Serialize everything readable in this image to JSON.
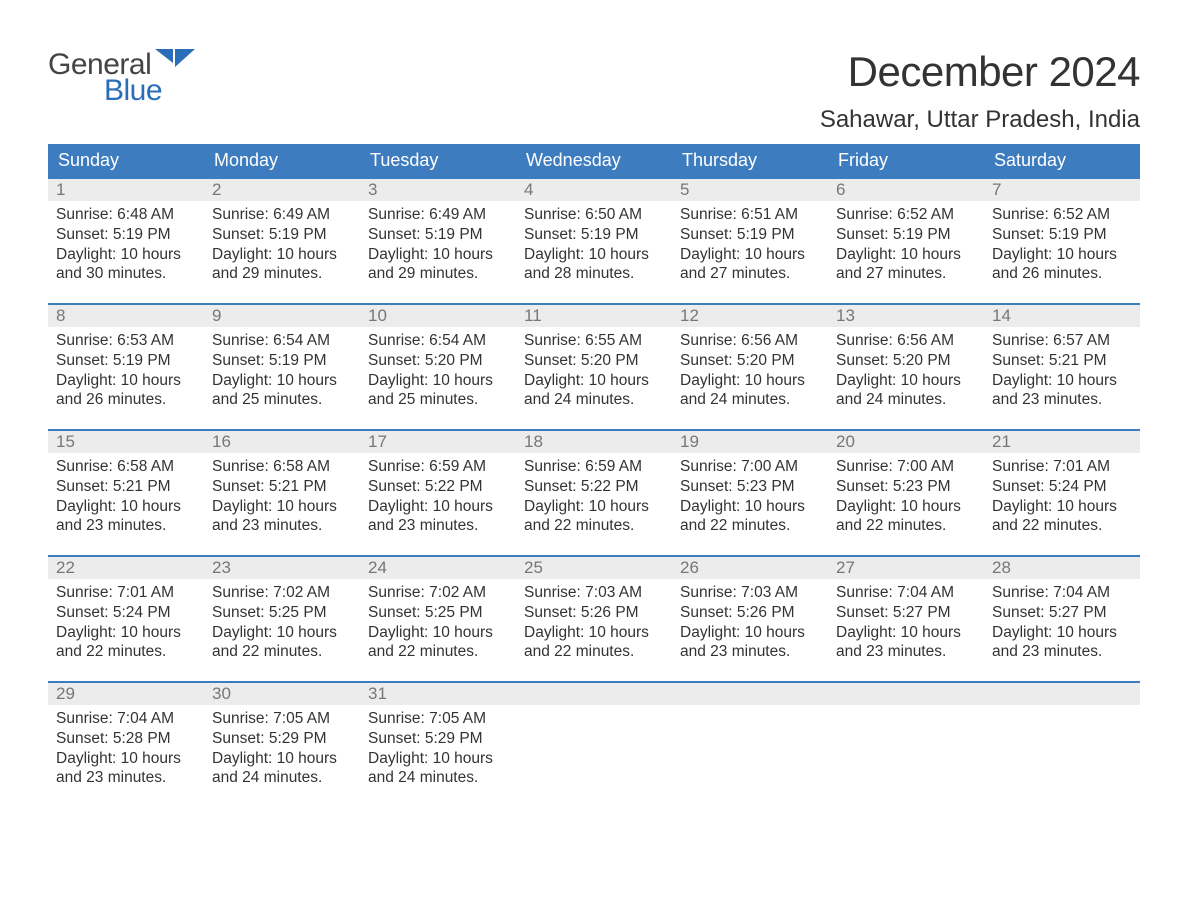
{
  "logo": {
    "line1": "General",
    "line2": "Blue"
  },
  "title": "December 2024",
  "location": "Sahawar, Uttar Pradesh, India",
  "colors": {
    "header_bg": "#3d7cbf",
    "header_text": "#ffffff",
    "daynum_bg": "#ececec",
    "daynum_text": "#777777",
    "body_text": "#333333",
    "week_border": "#3d7cbf",
    "logo_blue": "#2a6db8",
    "logo_gray": "#444444"
  },
  "weekdays": [
    "Sunday",
    "Monday",
    "Tuesday",
    "Wednesday",
    "Thursday",
    "Friday",
    "Saturday"
  ],
  "labels": {
    "sunrise": "Sunrise:",
    "sunset": "Sunset:",
    "daylight": "Daylight:"
  },
  "days": [
    {
      "n": "1",
      "sr": "6:48 AM",
      "ss": "5:19 PM",
      "dl": "10 hours and 30 minutes."
    },
    {
      "n": "2",
      "sr": "6:49 AM",
      "ss": "5:19 PM",
      "dl": "10 hours and 29 minutes."
    },
    {
      "n": "3",
      "sr": "6:49 AM",
      "ss": "5:19 PM",
      "dl": "10 hours and 29 minutes."
    },
    {
      "n": "4",
      "sr": "6:50 AM",
      "ss": "5:19 PM",
      "dl": "10 hours and 28 minutes."
    },
    {
      "n": "5",
      "sr": "6:51 AM",
      "ss": "5:19 PM",
      "dl": "10 hours and 27 minutes."
    },
    {
      "n": "6",
      "sr": "6:52 AM",
      "ss": "5:19 PM",
      "dl": "10 hours and 27 minutes."
    },
    {
      "n": "7",
      "sr": "6:52 AM",
      "ss": "5:19 PM",
      "dl": "10 hours and 26 minutes."
    },
    {
      "n": "8",
      "sr": "6:53 AM",
      "ss": "5:19 PM",
      "dl": "10 hours and 26 minutes."
    },
    {
      "n": "9",
      "sr": "6:54 AM",
      "ss": "5:19 PM",
      "dl": "10 hours and 25 minutes."
    },
    {
      "n": "10",
      "sr": "6:54 AM",
      "ss": "5:20 PM",
      "dl": "10 hours and 25 minutes."
    },
    {
      "n": "11",
      "sr": "6:55 AM",
      "ss": "5:20 PM",
      "dl": "10 hours and 24 minutes."
    },
    {
      "n": "12",
      "sr": "6:56 AM",
      "ss": "5:20 PM",
      "dl": "10 hours and 24 minutes."
    },
    {
      "n": "13",
      "sr": "6:56 AM",
      "ss": "5:20 PM",
      "dl": "10 hours and 24 minutes."
    },
    {
      "n": "14",
      "sr": "6:57 AM",
      "ss": "5:21 PM",
      "dl": "10 hours and 23 minutes."
    },
    {
      "n": "15",
      "sr": "6:58 AM",
      "ss": "5:21 PM",
      "dl": "10 hours and 23 minutes."
    },
    {
      "n": "16",
      "sr": "6:58 AM",
      "ss": "5:21 PM",
      "dl": "10 hours and 23 minutes."
    },
    {
      "n": "17",
      "sr": "6:59 AM",
      "ss": "5:22 PM",
      "dl": "10 hours and 23 minutes."
    },
    {
      "n": "18",
      "sr": "6:59 AM",
      "ss": "5:22 PM",
      "dl": "10 hours and 22 minutes."
    },
    {
      "n": "19",
      "sr": "7:00 AM",
      "ss": "5:23 PM",
      "dl": "10 hours and 22 minutes."
    },
    {
      "n": "20",
      "sr": "7:00 AM",
      "ss": "5:23 PM",
      "dl": "10 hours and 22 minutes."
    },
    {
      "n": "21",
      "sr": "7:01 AM",
      "ss": "5:24 PM",
      "dl": "10 hours and 22 minutes."
    },
    {
      "n": "22",
      "sr": "7:01 AM",
      "ss": "5:24 PM",
      "dl": "10 hours and 22 minutes."
    },
    {
      "n": "23",
      "sr": "7:02 AM",
      "ss": "5:25 PM",
      "dl": "10 hours and 22 minutes."
    },
    {
      "n": "24",
      "sr": "7:02 AM",
      "ss": "5:25 PM",
      "dl": "10 hours and 22 minutes."
    },
    {
      "n": "25",
      "sr": "7:03 AM",
      "ss": "5:26 PM",
      "dl": "10 hours and 22 minutes."
    },
    {
      "n": "26",
      "sr": "7:03 AM",
      "ss": "5:26 PM",
      "dl": "10 hours and 23 minutes."
    },
    {
      "n": "27",
      "sr": "7:04 AM",
      "ss": "5:27 PM",
      "dl": "10 hours and 23 minutes."
    },
    {
      "n": "28",
      "sr": "7:04 AM",
      "ss": "5:27 PM",
      "dl": "10 hours and 23 minutes."
    },
    {
      "n": "29",
      "sr": "7:04 AM",
      "ss": "5:28 PM",
      "dl": "10 hours and 23 minutes."
    },
    {
      "n": "30",
      "sr": "7:05 AM",
      "ss": "5:29 PM",
      "dl": "10 hours and 24 minutes."
    },
    {
      "n": "31",
      "sr": "7:05 AM",
      "ss": "5:29 PM",
      "dl": "10 hours and 24 minutes."
    }
  ],
  "weeks_layout": [
    [
      0,
      1,
      2,
      3,
      4,
      5,
      6
    ],
    [
      7,
      8,
      9,
      10,
      11,
      12,
      13
    ],
    [
      14,
      15,
      16,
      17,
      18,
      19,
      20
    ],
    [
      21,
      22,
      23,
      24,
      25,
      26,
      27
    ],
    [
      28,
      29,
      30,
      -1,
      -1,
      -1,
      -1
    ]
  ]
}
